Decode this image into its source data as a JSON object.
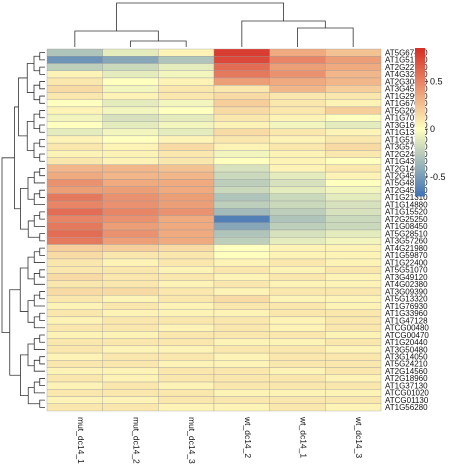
{
  "chart_data": {
    "type": "heatmap",
    "title": "",
    "columns": [
      "mut_dc14_1",
      "mut_dc14_2",
      "mut_dc14_3",
      "wt_dc14_2",
      "wt_dc14_1",
      "wt_dc14_3"
    ],
    "rows": [
      "AT5G67480",
      "AT1G51780",
      "AT2G22770",
      "AT4G32800",
      "AT2G30890",
      "AT3G45140",
      "AT1G29930",
      "AT1G67090",
      "AT5G26000",
      "AT1G70700",
      "AT3G16640",
      "AT1G13340",
      "AT1G51760",
      "AT3G57520",
      "AT2G24850",
      "AT1G43910",
      "AT2G14610",
      "AT2G45570",
      "AT5G48180",
      "AT2G45220",
      "AT1G21310",
      "AT1G14880",
      "AT1G15520",
      "AT2G25250",
      "AT1G08450",
      "AT5G28510",
      "AT3G57260",
      "AT4G21980",
      "AT1G59870",
      "AT1G22400",
      "AT5G51070",
      "AT3G49120",
      "AT4G02380",
      "AT3G09390",
      "AT5G13320",
      "AT1G76930",
      "AT1G33960",
      "AT1G47128",
      "ATCG00480",
      "ATCG00470",
      "AT1G20440",
      "AT3G50480",
      "AT3G14050",
      "AT5G24210",
      "AT2G14560",
      "AT2G18960",
      "AT1G37130",
      "ATCG01020",
      "ATCG01130",
      "AT1G56280"
    ],
    "values": [
      [
        -0.3,
        -0.1,
        0.05,
        0.8,
        0.35,
        0.25
      ],
      [
        -0.55,
        -0.45,
        -0.3,
        0.75,
        0.5,
        0.4
      ],
      [
        -0.25,
        -0.2,
        -0.1,
        0.6,
        0.4,
        0.35
      ],
      [
        0.05,
        -0.1,
        -0.05,
        0.55,
        0.45,
        0.3
      ],
      [
        0.1,
        0.0,
        0.05,
        0.4,
        0.35,
        0.3
      ],
      [
        0.15,
        -0.05,
        0.1,
        0.1,
        0.3,
        0.2
      ],
      [
        0.1,
        0.05,
        0.1,
        0.15,
        0.1,
        0.1
      ],
      [
        0.0,
        -0.1,
        -0.05,
        0.2,
        0.1,
        0.05
      ],
      [
        0.05,
        -0.05,
        0.0,
        0.15,
        0.1,
        0.2
      ],
      [
        -0.05,
        -0.15,
        -0.1,
        0.1,
        0.05,
        0.0
      ],
      [
        0.0,
        -0.1,
        -0.05,
        0.05,
        -0.05,
        -0.1
      ],
      [
        -0.1,
        -0.05,
        -0.1,
        0.15,
        0.1,
        0.05
      ],
      [
        0.05,
        0.0,
        0.05,
        0.1,
        0.05,
        0.1
      ],
      [
        0.1,
        0.05,
        0.15,
        0.05,
        0.1,
        0.15
      ],
      [
        0.05,
        0.05,
        0.1,
        -0.05,
        0.05,
        0.1
      ],
      [
        0.1,
        0.05,
        0.1,
        0.0,
        0.05,
        0.0
      ],
      [
        0.3,
        0.3,
        0.25,
        -0.15,
        0.05,
        0.1
      ],
      [
        0.35,
        0.3,
        0.3,
        -0.2,
        -0.1,
        0.05
      ],
      [
        0.45,
        0.35,
        0.35,
        -0.25,
        -0.15,
        0.0
      ],
      [
        0.4,
        0.4,
        0.35,
        -0.2,
        -0.1,
        -0.05
      ],
      [
        0.55,
        0.45,
        0.4,
        -0.3,
        -0.2,
        -0.1
      ],
      [
        0.5,
        0.45,
        0.4,
        -0.25,
        -0.2,
        -0.15
      ],
      [
        0.6,
        0.5,
        0.45,
        -0.35,
        -0.25,
        -0.15
      ],
      [
        0.5,
        0.45,
        0.35,
        -0.65,
        -0.3,
        -0.2
      ],
      [
        0.55,
        0.4,
        0.35,
        -0.45,
        -0.25,
        -0.2
      ],
      [
        0.6,
        0.45,
        0.35,
        -0.3,
        -0.15,
        -0.1
      ],
      [
        0.55,
        0.4,
        0.35,
        -0.25,
        -0.1,
        -0.05
      ],
      [
        0.2,
        0.2,
        0.15,
        0.0,
        0.05,
        0.05
      ],
      [
        0.15,
        0.1,
        0.1,
        0.0,
        0.05,
        0.05
      ],
      [
        0.1,
        0.05,
        0.1,
        0.05,
        0.1,
        0.05
      ],
      [
        0.1,
        0.1,
        0.05,
        0.1,
        0.05,
        0.1
      ],
      [
        0.15,
        0.1,
        0.1,
        0.05,
        0.1,
        0.05
      ],
      [
        0.1,
        0.1,
        0.05,
        0.1,
        0.05,
        0.05
      ],
      [
        0.15,
        0.15,
        0.1,
        0.05,
        0.1,
        0.1
      ],
      [
        0.1,
        0.05,
        0.1,
        0.15,
        0.05,
        0.05
      ],
      [
        0.05,
        0.1,
        0.05,
        0.1,
        0.1,
        0.05
      ],
      [
        0.1,
        0.05,
        0.05,
        0.05,
        0.1,
        0.1
      ],
      [
        0.05,
        0.1,
        0.1,
        0.1,
        0.05,
        0.1
      ],
      [
        0.1,
        0.1,
        0.05,
        0.1,
        0.05,
        0.1
      ],
      [
        0.05,
        0.05,
        0.1,
        0.1,
        0.1,
        0.05
      ],
      [
        0.1,
        0.1,
        0.1,
        0.05,
        0.05,
        0.1
      ],
      [
        0.1,
        0.05,
        0.05,
        0.1,
        0.1,
        0.05
      ],
      [
        0.05,
        0.1,
        0.1,
        0.05,
        0.1,
        0.1
      ],
      [
        0.1,
        0.1,
        0.05,
        0.05,
        0.1,
        0.1
      ],
      [
        0.05,
        0.05,
        0.1,
        0.1,
        0.05,
        0.1
      ],
      [
        0.1,
        0.05,
        0.1,
        0.1,
        0.1,
        0.05
      ],
      [
        0.05,
        0.1,
        0.05,
        0.1,
        0.1,
        0.1
      ],
      [
        0.1,
        0.1,
        0.1,
        0.05,
        0.05,
        0.05
      ],
      [
        0.05,
        0.05,
        0.1,
        0.1,
        0.1,
        0.1
      ],
      [
        0.1,
        0.1,
        0.05,
        0.05,
        0.1,
        0.05
      ]
    ],
    "color_scale": {
      "min": -0.7,
      "max": 0.85,
      "low_color": "#4575b4",
      "mid_color": "#ffffbf",
      "high_color": "#d73027"
    },
    "legend": {
      "ticks": [
        0.5,
        0,
        -0.5
      ],
      "tick_labels": [
        "0.5",
        "0",
        "-0.5"
      ],
      "placement": "right"
    }
  }
}
